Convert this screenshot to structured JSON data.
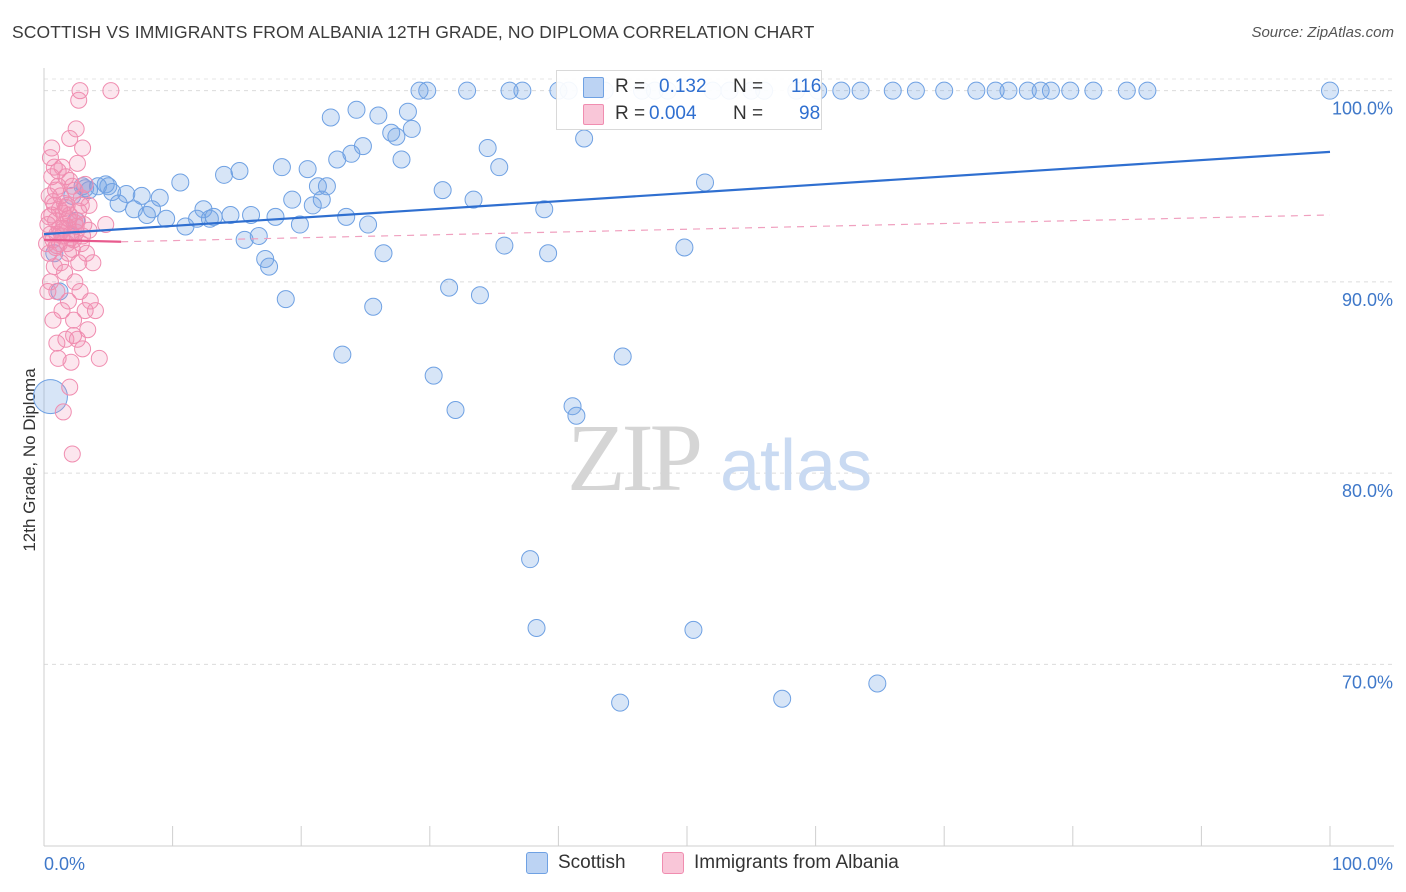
{
  "title": "SCOTTISH VS IMMIGRANTS FROM ALBANIA 12TH GRADE, NO DIPLOMA CORRELATION CHART",
  "source": "Source: ZipAtlas.com",
  "watermark": {
    "zip": "ZIP",
    "atlas": "atlas"
  },
  "legend": {
    "r_label": "R =",
    "n_label": "N =",
    "series": [
      {
        "name": "Scottish",
        "r": "0.132",
        "n": "116",
        "color": "#6fa1e3"
      },
      {
        "name": "Immigrants from Albania",
        "r": "0.004",
        "n": "98",
        "color": "#f08db0"
      }
    ]
  },
  "chart_data": {
    "type": "scatter",
    "title": "SCOTTISH VS IMMIGRANTS FROM ALBANIA 12TH GRADE, NO DIPLOMA CORRELATION CHART",
    "xlabel": "",
    "ylabel": "12th Grade, No Diploma",
    "xlim": [
      0,
      100
    ],
    "ylim": [
      60.5,
      101.5
    ],
    "x_tick_labels": [
      "0.0%",
      "100.0%"
    ],
    "y_ticks": [
      70,
      80,
      90,
      100
    ],
    "y_tick_labels": [
      "70.0%",
      "80.0%",
      "90.0%",
      "100.0%"
    ],
    "grid": true,
    "series": [
      {
        "name": "Scottish",
        "color": "#6fa1e3",
        "trend": {
          "x": [
            0,
            100
          ],
          "y": [
            92.5,
            96.8
          ]
        },
        "points": [
          [
            0.5,
            84.0
          ],
          [
            2.2,
            94.5
          ],
          [
            2.5,
            93.2
          ],
          [
            3.0,
            95.0
          ],
          [
            3.5,
            94.8
          ],
          [
            4.2,
            95.0
          ],
          [
            4.8,
            95.1
          ],
          [
            5.3,
            94.7
          ],
          [
            5.8,
            94.1
          ],
          [
            6.4,
            94.6
          ],
          [
            7.0,
            93.8
          ],
          [
            7.6,
            94.5
          ],
          [
            8.0,
            93.5
          ],
          [
            8.4,
            93.8
          ],
          [
            9.0,
            94.4
          ],
          [
            9.5,
            93.3
          ],
          [
            10.6,
            95.2
          ],
          [
            11.0,
            92.9
          ],
          [
            11.9,
            93.3
          ],
          [
            12.4,
            93.8
          ],
          [
            12.9,
            93.3
          ],
          [
            13.2,
            93.4
          ],
          [
            14.0,
            95.6
          ],
          [
            14.5,
            93.5
          ],
          [
            15.2,
            95.8
          ],
          [
            15.6,
            92.2
          ],
          [
            16.1,
            93.5
          ],
          [
            16.7,
            92.4
          ],
          [
            17.2,
            91.2
          ],
          [
            17.5,
            90.8
          ],
          [
            18.0,
            93.4
          ],
          [
            18.5,
            96.0
          ],
          [
            18.8,
            89.1
          ],
          [
            19.3,
            94.3
          ],
          [
            19.9,
            93.0
          ],
          [
            20.5,
            95.9
          ],
          [
            20.9,
            94.0
          ],
          [
            21.3,
            95.0
          ],
          [
            21.6,
            94.3
          ],
          [
            22.0,
            95.0
          ],
          [
            22.3,
            98.6
          ],
          [
            22.8,
            96.4
          ],
          [
            23.2,
            86.2
          ],
          [
            23.5,
            93.4
          ],
          [
            23.9,
            96.7
          ],
          [
            24.3,
            99.0
          ],
          [
            24.8,
            97.1
          ],
          [
            25.2,
            93.0
          ],
          [
            25.6,
            88.7
          ],
          [
            26.0,
            98.7
          ],
          [
            26.4,
            91.5
          ],
          [
            27.0,
            97.8
          ],
          [
            27.4,
            97.6
          ],
          [
            27.8,
            96.4
          ],
          [
            28.3,
            98.9
          ],
          [
            28.6,
            98.0
          ],
          [
            29.2,
            100.0
          ],
          [
            29.8,
            100.0
          ],
          [
            30.3,
            85.1
          ],
          [
            31.0,
            94.8
          ],
          [
            31.5,
            89.7
          ],
          [
            32.0,
            83.3
          ],
          [
            32.9,
            100.0
          ],
          [
            33.4,
            94.3
          ],
          [
            33.9,
            89.3
          ],
          [
            34.5,
            97.0
          ],
          [
            35.4,
            96.0
          ],
          [
            35.8,
            91.9
          ],
          [
            36.2,
            100.0
          ],
          [
            37.2,
            100.0
          ],
          [
            37.8,
            75.5
          ],
          [
            38.3,
            71.9
          ],
          [
            38.9,
            93.8
          ],
          [
            39.2,
            91.5
          ],
          [
            40.0,
            100.0
          ],
          [
            40.8,
            100.0
          ],
          [
            41.1,
            83.5
          ],
          [
            41.4,
            83.0
          ],
          [
            42.0,
            97.5
          ],
          [
            43.6,
            100.0
          ],
          [
            44.8,
            68.0
          ],
          [
            45.0,
            86.1
          ],
          [
            46.5,
            100.0
          ],
          [
            47.5,
            100.0
          ],
          [
            48.5,
            100.0
          ],
          [
            49.8,
            91.8
          ],
          [
            50.5,
            71.8
          ],
          [
            51.4,
            95.2
          ],
          [
            52.0,
            100.0
          ],
          [
            53.3,
            100.0
          ],
          [
            55.0,
            100.0
          ],
          [
            56.0,
            100.0
          ],
          [
            57.4,
            68.2
          ],
          [
            58.5,
            100.0
          ],
          [
            60.2,
            100.0
          ],
          [
            62.0,
            100.0
          ],
          [
            63.5,
            100.0
          ],
          [
            64.8,
            69.0
          ],
          [
            66.0,
            100.0
          ],
          [
            67.8,
            100.0
          ],
          [
            70.0,
            100.0
          ],
          [
            72.5,
            100.0
          ],
          [
            74.0,
            100.0
          ],
          [
            75.0,
            100.0
          ],
          [
            76.5,
            100.0
          ],
          [
            77.5,
            100.0
          ],
          [
            78.3,
            100.0
          ],
          [
            79.8,
            100.0
          ],
          [
            81.6,
            100.0
          ],
          [
            84.2,
            100.0
          ],
          [
            85.8,
            100.0
          ],
          [
            100.0,
            100.0
          ],
          [
            0.8,
            91.5
          ],
          [
            1.2,
            89.5
          ],
          [
            3.2,
            94.9
          ],
          [
            5.0,
            95.0
          ]
        ]
      },
      {
        "name": "Immigrants from Albania",
        "color": "#f08db0",
        "trend": {
          "x": [
            0,
            6.0
          ],
          "y": [
            92.2,
            92.1
          ],
          "dashed_extension": {
            "x": [
              6.0,
              100
            ],
            "y": [
              92.1,
              93.5
            ]
          }
        },
        "points": [
          [
            0.2,
            92.0
          ],
          [
            0.3,
            93.0
          ],
          [
            0.4,
            91.5
          ],
          [
            0.4,
            94.5
          ],
          [
            0.5,
            92.5
          ],
          [
            0.5,
            90.0
          ],
          [
            0.6,
            93.5
          ],
          [
            0.6,
            95.5
          ],
          [
            0.7,
            92.2
          ],
          [
            0.7,
            88.0
          ],
          [
            0.8,
            94.0
          ],
          [
            0.8,
            96.0
          ],
          [
            0.9,
            91.8
          ],
          [
            0.9,
            93.2
          ],
          [
            1.0,
            92.5
          ],
          [
            1.0,
            89.5
          ],
          [
            1.1,
            95.0
          ],
          [
            1.1,
            86.0
          ],
          [
            1.2,
            93.8
          ],
          [
            1.2,
            92.0
          ],
          [
            1.3,
            91.0
          ],
          [
            1.3,
            94.5
          ],
          [
            1.4,
            96.0
          ],
          [
            1.4,
            88.5
          ],
          [
            1.5,
            92.8
          ],
          [
            1.5,
            83.2
          ],
          [
            1.6,
            93.0
          ],
          [
            1.6,
            90.5
          ],
          [
            1.7,
            95.5
          ],
          [
            1.7,
            87.0
          ],
          [
            1.8,
            92.0
          ],
          [
            1.8,
            94.0
          ],
          [
            1.9,
            91.5
          ],
          [
            1.9,
            89.0
          ],
          [
            2.0,
            97.5
          ],
          [
            2.0,
            93.5
          ],
          [
            2.1,
            92.5
          ],
          [
            2.1,
            85.8
          ],
          [
            2.2,
            81.0
          ],
          [
            2.2,
            95.0
          ],
          [
            2.3,
            92.2
          ],
          [
            2.3,
            88.0
          ],
          [
            2.4,
            94.8
          ],
          [
            2.4,
            90.0
          ],
          [
            2.5,
            98.0
          ],
          [
            2.5,
            92.6
          ],
          [
            2.6,
            87.0
          ],
          [
            2.6,
            93.2
          ],
          [
            2.7,
            99.5
          ],
          [
            2.7,
            91.0
          ],
          [
            2.8,
            100.0
          ],
          [
            2.8,
            89.5
          ],
          [
            2.9,
            94.0
          ],
          [
            2.9,
            92.0
          ],
          [
            3.0,
            97.0
          ],
          [
            3.0,
            86.5
          ],
          [
            3.1,
            93.0
          ],
          [
            3.2,
            88.5
          ],
          [
            3.3,
            91.5
          ],
          [
            3.4,
            87.5
          ],
          [
            3.5,
            94.0
          ],
          [
            3.6,
            89.0
          ],
          [
            3.8,
            91.0
          ],
          [
            4.0,
            88.5
          ],
          [
            4.3,
            86.0
          ],
          [
            4.8,
            93.0
          ],
          [
            5.2,
            100.0
          ],
          [
            0.3,
            89.5
          ],
          [
            0.6,
            97.0
          ],
          [
            0.9,
            94.8
          ],
          [
            1.2,
            92.8
          ],
          [
            1.5,
            93.6
          ],
          [
            1.8,
            92.9
          ],
          [
            2.1,
            92.3
          ],
          [
            2.4,
            93.1
          ],
          [
            2.7,
            93.7
          ],
          [
            3.0,
            92.4
          ],
          [
            0.4,
            93.4
          ],
          [
            0.7,
            94.2
          ],
          [
            1.0,
            91.9
          ],
          [
            1.3,
            92.6
          ],
          [
            1.6,
            94.1
          ],
          [
            1.9,
            93.3
          ],
          [
            2.2,
            91.7
          ],
          [
            2.5,
            92.9
          ],
          [
            0.5,
            96.5
          ],
          [
            0.8,
            90.8
          ],
          [
            1.1,
            95.8
          ],
          [
            1.4,
            92.4
          ],
          [
            1.7,
            93.9
          ],
          [
            2.0,
            95.3
          ],
          [
            2.3,
            87.2
          ],
          [
            2.6,
            96.2
          ],
          [
            2.9,
            94.4
          ],
          [
            3.2,
            95.1
          ],
          [
            3.5,
            92.7
          ],
          [
            1.0,
            86.8
          ],
          [
            2.0,
            84.5
          ]
        ]
      }
    ]
  }
}
